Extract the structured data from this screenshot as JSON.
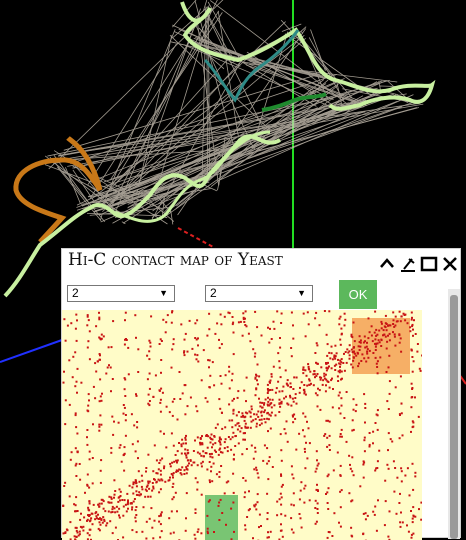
{
  "panel": {
    "title": "Hi-C contact map of Yeast",
    "chrom_a": {
      "selected": "2",
      "options": [
        "2"
      ]
    },
    "chrom_b": {
      "selected": "2",
      "options": [
        "2"
      ]
    },
    "ok_label": "OK"
  },
  "window_controls": [
    "collapse-icon",
    "pin-icon",
    "maximize-icon",
    "close-icon"
  ],
  "colors": {
    "background": "#000000",
    "heatmap_bg": "#fffcc8",
    "contact": "#c81414",
    "highlight_orange": "#f5a65b",
    "highlight_green": "#6abf69",
    "chromatin_light": "#c8f0a0",
    "chromatin_orange": "#c87818",
    "chromatin_teal": "#2e8b87",
    "chromatin_dark_green": "#1f8a2e",
    "link_lines": "#d8cfc0",
    "ok_button": "#5cb85c"
  }
}
